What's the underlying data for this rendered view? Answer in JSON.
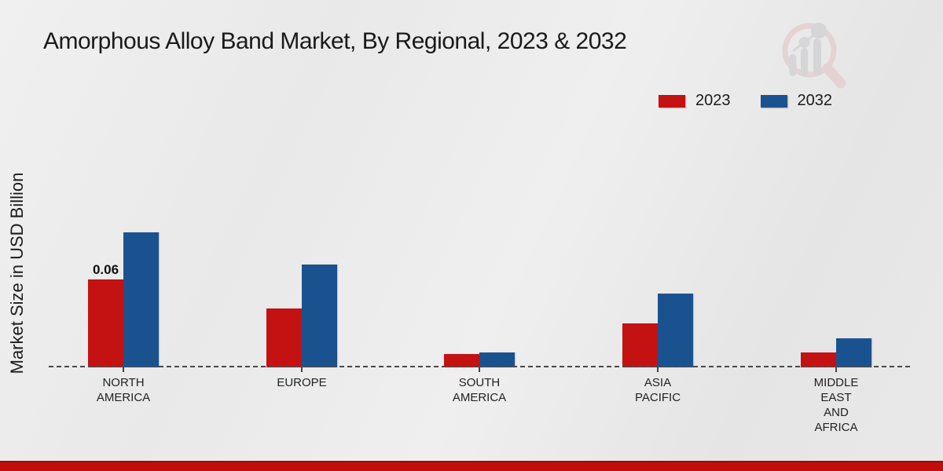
{
  "title": "Amorphous Alloy Band Market, By Regional, 2023 & 2032",
  "ylabel": "Market Size in USD Billion",
  "chart_data": {
    "type": "bar",
    "categories": [
      "NORTH\nAMERICA",
      "EUROPE",
      "SOUTH\nAMERICA",
      "ASIA\nPACIFIC",
      "MIDDLE\nEAST\nAND\nAFRICA"
    ],
    "series": [
      {
        "name": "2023",
        "color": "#c41111",
        "values": [
          0.06,
          0.04,
          0.009,
          0.03,
          0.01
        ]
      },
      {
        "name": "2032",
        "color": "#1a5290",
        "values": [
          0.092,
          0.07,
          0.01,
          0.05,
          0.02
        ]
      }
    ],
    "annotations": [
      {
        "series_index": 0,
        "category_index": 0,
        "text": "0.06"
      }
    ],
    "title": "Amorphous Alloy Band Market, By Regional, 2023 & 2032",
    "xlabel": "",
    "ylabel": "Market Size in USD Billion",
    "ylim": [
      0,
      0.1
    ],
    "unit": "USD Billion",
    "grid": false,
    "legend_position": "top-right",
    "baseline_style": "dashed"
  },
  "colors": {
    "series_2023": "#c41111",
    "series_2032": "#1a5290",
    "footer_bar": "#c20d0d",
    "baseline": "#4a4a4a"
  },
  "watermark": {
    "name": "market-research-future-logo"
  }
}
